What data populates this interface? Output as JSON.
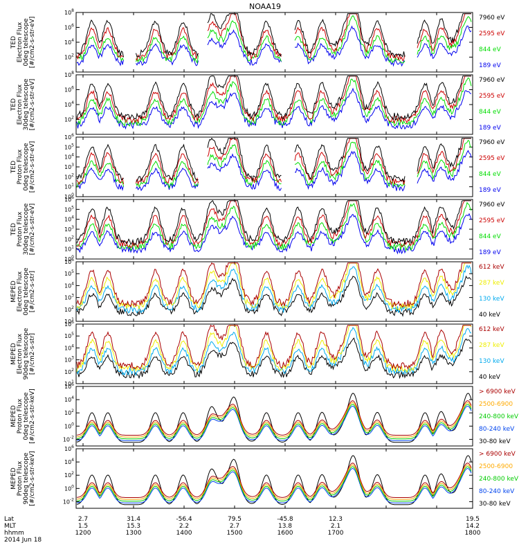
{
  "chart_data": {
    "type": "line",
    "title": "NOAA19",
    "x_ticks": {
      "lat": [
        "2.7",
        "31.4",
        "-56.4",
        "79.5",
        "-45.8",
        "12.3",
        "19.5"
      ],
      "mlt": [
        "1.5",
        "15.3",
        "2.2",
        "2.7",
        "13.8",
        "2.1",
        "14.2"
      ],
      "hhmm": [
        "1200",
        "1300",
        "1400",
        "1500",
        "1600",
        "1700",
        "1800"
      ]
    },
    "x_row_labels": [
      "Lat",
      "MLT",
      "hhmm",
      "2014 Jun 18"
    ],
    "panels": [
      {
        "ylabel": [
          "TED",
          "Electron Flux",
          "0deg telescope",
          "[#/cm2-s-str-eV]"
        ],
        "yscale": "log",
        "ylim_exp": [
          0,
          8
        ],
        "ytick_exps": [
          2,
          4,
          6,
          8
        ],
        "series": [
          {
            "name": "7960 eV",
            "color": "#000000"
          },
          {
            "name": "2595 eV",
            "color": "#cc0000"
          },
          {
            "name": "844 eV",
            "color": "#00dd00"
          },
          {
            "name": "189 eV",
            "color": "#0000ee"
          }
        ]
      },
      {
        "ylabel": [
          "TED",
          "Electron Flux",
          "30deg telescope",
          "[#/cm2-s-str-eV]"
        ],
        "yscale": "log",
        "ylim_exp": [
          0,
          8
        ],
        "ytick_exps": [
          2,
          4,
          6,
          8
        ],
        "series": [
          {
            "name": "7960 eV",
            "color": "#000000"
          },
          {
            "name": "2595 eV",
            "color": "#cc0000"
          },
          {
            "name": "844 eV",
            "color": "#00dd00"
          },
          {
            "name": "189 eV",
            "color": "#0000ee"
          }
        ]
      },
      {
        "ylabel": [
          "TED",
          "Proton Flux",
          "0deg telescope",
          "[#/cm2-s-str-eV]"
        ],
        "yscale": "log",
        "ylim_exp": [
          0,
          6
        ],
        "ytick_exps": [
          0,
          1,
          2,
          3,
          4,
          5,
          6
        ],
        "series": [
          {
            "name": "7960 eV",
            "color": "#000000"
          },
          {
            "name": "2595 eV",
            "color": "#cc0000"
          },
          {
            "name": "844 eV",
            "color": "#00dd00"
          },
          {
            "name": "189 eV",
            "color": "#0000ee"
          }
        ]
      },
      {
        "ylabel": [
          "TED",
          "Proton Flux",
          "30deg telescope",
          "[#/cm2-s-str-eV]"
        ],
        "yscale": "log",
        "ylim_exp": [
          0,
          6
        ],
        "ytick_exps": [
          0,
          1,
          2,
          3,
          4,
          5,
          6
        ],
        "series": [
          {
            "name": "7960 eV",
            "color": "#000000"
          },
          {
            "name": "2595 eV",
            "color": "#cc0000"
          },
          {
            "name": "844 eV",
            "color": "#00dd00"
          },
          {
            "name": "189 eV",
            "color": "#0000ee"
          }
        ]
      },
      {
        "ylabel": [
          "MEPED",
          "Electron Flux",
          "0deg telescope",
          "[#/cm2-s-str]"
        ],
        "yscale": "log",
        "ylim_exp": [
          1,
          6
        ],
        "ytick_exps": [
          1,
          2,
          3,
          4,
          5,
          6
        ],
        "series": [
          {
            "name": "612 keV",
            "color": "#aa0000"
          },
          {
            "name": "287 keV",
            "color": "#eeee00"
          },
          {
            "name": "130 keV",
            "color": "#00aaee"
          },
          {
            "name": "40 keV",
            "color": "#000000"
          }
        ]
      },
      {
        "ylabel": [
          "MEPED",
          "Electron Flux",
          "90deg telescope",
          "[#/cm2-s-str]"
        ],
        "yscale": "log",
        "ylim_exp": [
          1,
          6
        ],
        "ytick_exps": [
          1,
          2,
          3,
          4,
          5,
          6
        ],
        "series": [
          {
            "name": "612 keV",
            "color": "#aa0000"
          },
          {
            "name": "287 keV",
            "color": "#eeee00"
          },
          {
            "name": "130 keV",
            "color": "#00aaee"
          },
          {
            "name": "40 keV",
            "color": "#000000"
          }
        ]
      },
      {
        "ylabel": [
          "MEPED",
          "Proton Flux",
          "0deg telescope",
          "[#/cm2-s-str-keV]"
        ],
        "yscale": "log",
        "ylim_exp": [
          -3,
          6
        ],
        "ytick_exps": [
          -2,
          0,
          2,
          4,
          6
        ],
        "series": [
          {
            "name": "> 6900 keV",
            "color": "#aa0000"
          },
          {
            "name": "2500-6900",
            "color": "#ffaa00"
          },
          {
            "name": "240-800 keV",
            "color": "#00cc00"
          },
          {
            "name": "80-240 keV",
            "color": "#0044ee"
          },
          {
            "name": "30-80 keV",
            "color": "#000000"
          }
        ]
      },
      {
        "ylabel": [
          "MEPED",
          "Proton Flux",
          "90deg telescope",
          "[#/cm2-s-str-keV]"
        ],
        "yscale": "log",
        "ylim_exp": [
          -3,
          6
        ],
        "ytick_exps": [
          -2,
          0,
          2,
          4,
          6
        ],
        "series": [
          {
            "name": "> 6900 keV",
            "color": "#aa0000"
          },
          {
            "name": "2500-6900",
            "color": "#ffaa00"
          },
          {
            "name": "240-800 keV",
            "color": "#00cc00"
          },
          {
            "name": "80-240 keV",
            "color": "#0044ee"
          },
          {
            "name": "30-80 keV",
            "color": "#000000"
          }
        ]
      }
    ]
  }
}
